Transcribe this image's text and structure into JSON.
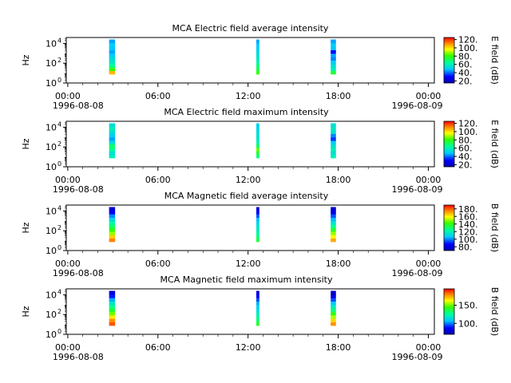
{
  "panels": [
    {
      "title": "MCA  Electric field average intensity",
      "ylabel": "Hz",
      "yticks": [
        "10",
        "10",
        "10"
      ],
      "yexp": [
        "0",
        "2",
        "4"
      ],
      "xticks": [
        "00:00",
        "06:00",
        "12:00",
        "18:00",
        "00:00"
      ],
      "date_left": "1996-08-08",
      "date_right": "1996-08-09",
      "cbar_label": "E field (dB)",
      "cbar_ticks": [
        "20.",
        "40.",
        "60.",
        "80.",
        "100.",
        "120."
      ]
    },
    {
      "title": "MCA  Electric field maximum intensity",
      "ylabel": "Hz",
      "yticks": [
        "10",
        "10",
        "10"
      ],
      "yexp": [
        "0",
        "2",
        "4"
      ],
      "xticks": [
        "00:00",
        "06:00",
        "12:00",
        "18:00",
        "00:00"
      ],
      "date_left": "1996-08-08",
      "date_right": "1996-08-09",
      "cbar_label": "E field (dB)",
      "cbar_ticks": [
        "20.",
        "40.",
        "60.",
        "80.",
        "100.",
        "120."
      ]
    },
    {
      "title": "MCA  Magnetic field average intensity",
      "ylabel": "Hz",
      "yticks": [
        "10",
        "10",
        "10"
      ],
      "yexp": [
        "0",
        "2",
        "4"
      ],
      "xticks": [
        "00:00",
        "06:00",
        "12:00",
        "18:00",
        "00:00"
      ],
      "date_left": "1996-08-08",
      "date_right": "1996-08-09",
      "cbar_label": "B field (dB)",
      "cbar_ticks": [
        "80.",
        "100.",
        "120.",
        "140.",
        "160.",
        "180."
      ]
    },
    {
      "title": "MCA  Magnetic field maximum intensity",
      "ylabel": "Hz",
      "yticks": [
        "10",
        "10",
        "10"
      ],
      "yexp": [
        "0",
        "2",
        "4"
      ],
      "xticks": [
        "00:00",
        "06:00",
        "12:00",
        "18:00",
        "00:00"
      ],
      "date_left": "1996-08-08",
      "date_right": "1996-08-09",
      "cbar_label": "B field (dB)",
      "cbar_ticks": [
        "100.",
        "150."
      ]
    }
  ],
  "chart_data": [
    {
      "type": "heatmap",
      "title": "MCA  Electric field average intensity",
      "ylabel": "Hz",
      "x_range_hours": [
        -0.1,
        24.4
      ],
      "y_range_log10": [
        0,
        4.6
      ],
      "colorbar": {
        "label": "E field (dB)",
        "range": [
          15,
          125
        ]
      },
      "series": [
        {
          "start_hour": 2.75,
          "end_hour": 3.15,
          "levels": [
            105,
            80,
            65,
            58,
            55,
            50,
            45,
            48,
            50,
            45
          ]
        },
        {
          "start_hour": 12.55,
          "end_hour": 12.75,
          "levels": [
            80,
            72,
            68,
            62,
            58,
            55,
            52,
            50,
            48,
            45
          ]
        },
        {
          "start_hour": 17.5,
          "end_hour": 17.85,
          "levels": [
            75,
            60,
            55,
            50,
            42,
            45,
            30,
            48,
            50,
            45
          ]
        }
      ]
    },
    {
      "type": "heatmap",
      "title": "MCA  Electric field maximum intensity",
      "ylabel": "Hz",
      "x_range_hours": [
        -0.1,
        24.4
      ],
      "y_range_log10": [
        0,
        4.6
      ],
      "colorbar": {
        "label": "E field (dB)",
        "range": [
          15,
          125
        ]
      },
      "series": [
        {
          "start_hour": 2.75,
          "end_hour": 3.15,
          "levels": [
            60,
            55,
            65,
            70,
            55,
            45,
            50,
            55,
            60,
            55
          ]
        },
        {
          "start_hour": 12.55,
          "end_hour": 12.75,
          "levels": [
            68,
            75,
            85,
            70,
            62,
            58,
            55,
            55,
            52,
            50
          ]
        },
        {
          "start_hour": 17.5,
          "end_hour": 17.85,
          "levels": [
            60,
            55,
            60,
            55,
            50,
            35,
            42,
            55,
            58,
            55
          ]
        }
      ]
    },
    {
      "type": "heatmap",
      "title": "MCA  Magnetic field average intensity",
      "ylabel": "Hz",
      "x_range_hours": [
        -0.1,
        24.4
      ],
      "y_range_log10": [
        0,
        4.6
      ],
      "colorbar": {
        "label": "B field (dB)",
        "range": [
          70,
          190
        ]
      },
      "series": [
        {
          "start_hour": 2.75,
          "end_hour": 3.15,
          "levels": [
            175,
            165,
            150,
            140,
            130,
            122,
            112,
            100,
            85,
            78
          ]
        },
        {
          "start_hour": 12.55,
          "end_hour": 12.75,
          "levels": [
            135,
            128,
            122,
            118,
            115,
            110,
            105,
            95,
            85,
            78
          ]
        },
        {
          "start_hour": 17.5,
          "end_hour": 17.85,
          "levels": [
            170,
            160,
            150,
            138,
            125,
            115,
            105,
            95,
            82,
            76
          ]
        }
      ]
    },
    {
      "type": "heatmap",
      "title": "MCA  Magnetic field maximum intensity",
      "ylabel": "Hz",
      "x_range_hours": [
        -0.1,
        24.4
      ],
      "y_range_log10": [
        0,
        4.6
      ],
      "colorbar": {
        "label": "B field (dB)",
        "range": [
          70,
          195
        ]
      },
      "series": [
        {
          "start_hour": 2.75,
          "end_hour": 3.15,
          "levels": [
            185,
            178,
            165,
            150,
            138,
            128,
            118,
            105,
            90,
            80
          ]
        },
        {
          "start_hour": 12.55,
          "end_hour": 12.75,
          "levels": [
            140,
            132,
            125,
            120,
            115,
            110,
            105,
            95,
            85,
            78
          ]
        },
        {
          "start_hour": 17.5,
          "end_hour": 17.85,
          "levels": [
            178,
            168,
            155,
            142,
            130,
            120,
            108,
            95,
            82,
            76
          ]
        }
      ]
    }
  ]
}
